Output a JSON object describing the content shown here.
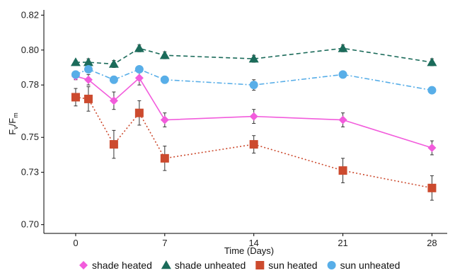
{
  "chart_data": {
    "type": "line",
    "xlabel": "Time (Days)",
    "ylabel": {
      "base": "F",
      "sub1": "v",
      "sep": "/",
      "base2": "F",
      "sub2": "m"
    },
    "xlim": [
      -2.5,
      29.2
    ],
    "ylim": [
      0.695,
      0.823
    ],
    "x_ticks": [
      0,
      7,
      14,
      21,
      28
    ],
    "y_ticks": [
      0.7,
      0.73,
      0.75,
      0.78,
      0.8,
      0.82
    ],
    "y_tick_labels": [
      "0.70",
      "0.73",
      "0.75",
      "0.78",
      "0.80",
      "0.82"
    ],
    "grid": false,
    "legend_position": "bottom",
    "series": [
      {
        "name": "shade heated",
        "color": "#F25CDC",
        "marker": "diamond",
        "dash": "solid",
        "x": [
          0,
          1,
          3,
          5,
          7,
          14,
          21,
          28
        ],
        "y": [
          0.785,
          0.783,
          0.771,
          0.784,
          0.76,
          0.762,
          0.76,
          0.744
        ],
        "err": [
          0.002,
          0.003,
          0.005,
          0.004,
          0.004,
          0.004,
          0.004,
          0.004
        ]
      },
      {
        "name": "shade unheated",
        "color": "#1B6B5A",
        "marker": "triangle",
        "dash": "dashed",
        "x": [
          0,
          1,
          3,
          5,
          7,
          14,
          21,
          28
        ],
        "y": [
          0.793,
          0.793,
          0.792,
          0.801,
          0.797,
          0.795,
          0.801,
          0.793
        ],
        "err": [
          0.001,
          0.002,
          0.002,
          0.002,
          0.002,
          0.002,
          0.002,
          0.002
        ]
      },
      {
        "name": "sun heated",
        "color": "#CC4A2E",
        "marker": "square",
        "dash": "dotted",
        "x": [
          0,
          1,
          3,
          5,
          7,
          14,
          21,
          28
        ],
        "y": [
          0.773,
          0.772,
          0.746,
          0.764,
          0.738,
          0.746,
          0.731,
          0.721
        ],
        "err": [
          0.005,
          0.007,
          0.008,
          0.007,
          0.007,
          0.005,
          0.007,
          0.007
        ]
      },
      {
        "name": "sun unheated",
        "color": "#58AEE8",
        "marker": "circle",
        "dash": "dashdot",
        "x": [
          0,
          1,
          3,
          5,
          7,
          14,
          21,
          28
        ],
        "y": [
          0.786,
          0.789,
          0.783,
          0.789,
          0.783,
          0.78,
          0.786,
          0.777
        ],
        "err": [
          0.002,
          0.002,
          0.002,
          0.002,
          0.002,
          0.003,
          0.002,
          0.002
        ]
      }
    ]
  }
}
